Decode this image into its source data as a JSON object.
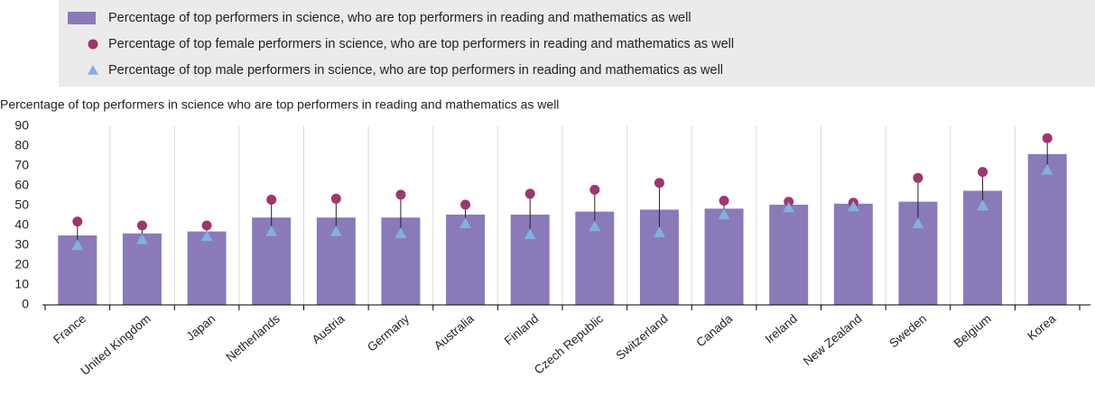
{
  "chart_data": {
    "type": "bar",
    "axis_title": "Percentage of top performers in science who are top performers in reading and mathematics as well",
    "categories": [
      "France",
      "United Kingdom",
      "Japan",
      "Netherlands",
      "Austria",
      "Germany",
      "Australia",
      "Finland",
      "Czech Republic",
      "Switzerland",
      "Canada",
      "Ireland",
      "New Zealand",
      "Sweden",
      "Belgium",
      "Korea"
    ],
    "series": [
      {
        "name": "Percentage of top performers in science, who are top performers in reading and mathematics as well",
        "color": "#8a7ab9",
        "values": [
          35,
          36,
          37,
          44,
          44,
          44,
          45.5,
          45.5,
          47,
          48,
          48.5,
          50.5,
          51,
          52,
          57.5,
          76
        ]
      },
      {
        "name": "Percentage of top female performers in science, who are top performers in reading and mathematics as well",
        "color": "#a0356f",
        "values": [
          42,
          40,
          40,
          53,
          53.5,
          55.5,
          50.5,
          56,
          58,
          61.5,
          52.5,
          52,
          51.5,
          64,
          67,
          84
        ]
      },
      {
        "name": "Percentage of top male performers in science, who are top performers in reading and mathematics as well",
        "color": "#7fb1e1",
        "values": [
          30,
          33,
          34.5,
          37,
          37,
          36,
          41,
          35.5,
          39.5,
          36.5,
          45.5,
          49,
          49.5,
          41,
          50,
          68
        ]
      }
    ],
    "ylim": [
      0,
      90
    ],
    "yticks": [
      0,
      10,
      20,
      30,
      40,
      50,
      60,
      70,
      80,
      90
    ]
  }
}
